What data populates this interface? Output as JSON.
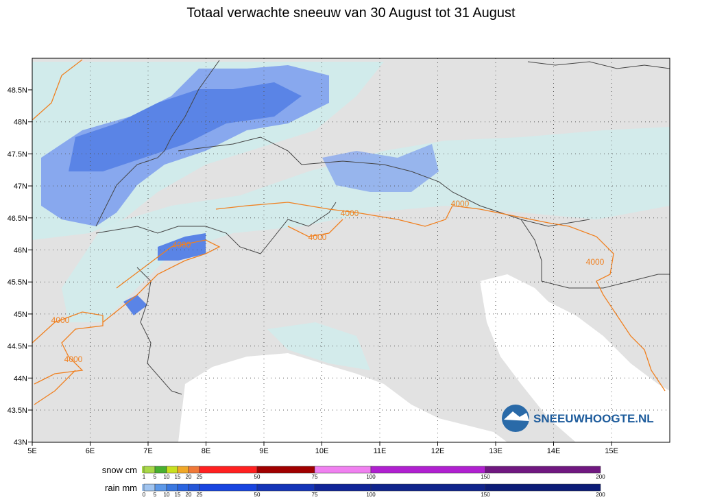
{
  "title": "Totaal verwachte sneeuw van 30 August tot 31 August",
  "map": {
    "lat_labels": [
      "48.5N",
      "48N",
      "47.5N",
      "47N",
      "46.5N",
      "46N",
      "45.5N",
      "45N",
      "44.5N",
      "44N",
      "43.5N",
      "43N"
    ],
    "lon_labels": [
      "5E",
      "6E",
      "7E",
      "8E",
      "9E",
      "10E",
      "11E",
      "12E",
      "13E",
      "14E",
      "15E"
    ],
    "contour_labels": [
      "4000",
      "4000",
      "4000",
      "4000",
      "4000",
      "4000",
      "4000"
    ],
    "logo": "SNEEUWHOOGTE.NL"
  },
  "legend": {
    "snow": {
      "label": "snow cm",
      "ticks": [
        1,
        5,
        10,
        15,
        20,
        25,
        50,
        75,
        100,
        150,
        200
      ],
      "colors": [
        "#a8d848",
        "#48b030",
        "#c8e020",
        "#f0a828",
        "#f07838",
        "#ff2020",
        "#a00000",
        "#f080f0",
        "#b020d0",
        "#701880"
      ]
    },
    "rain": {
      "label": "rain mm",
      "ticks": [
        0,
        5,
        10,
        15,
        20,
        25,
        50,
        75,
        100,
        150,
        200
      ],
      "colors": [
        "#a0c4f0",
        "#5c98e8",
        "#3a78e0",
        "#2a64e0",
        "#2456d8",
        "#1844e0",
        "#1434b8",
        "#102498",
        "#10248c",
        "#0c1c78"
      ]
    }
  }
}
